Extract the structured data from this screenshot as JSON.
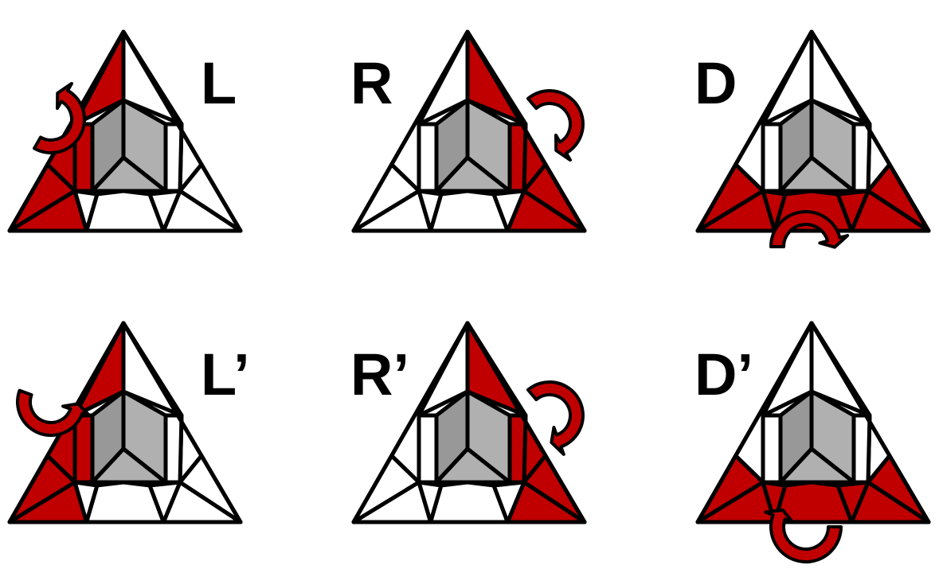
{
  "colors": {
    "red": "#c00000",
    "white": "#ffffff",
    "gray_light": "#b0b0b0",
    "gray_dark": "#989898",
    "outline": "#000000"
  },
  "moves": [
    {
      "label": "L",
      "face": "left",
      "direction": "clockwise"
    },
    {
      "label": "R",
      "face": "right",
      "direction": "clockwise"
    },
    {
      "label": "D",
      "face": "bottom",
      "direction": "clockwise"
    },
    {
      "label": "L’",
      "face": "left",
      "direction": "counterclockwise"
    },
    {
      "label": "R’",
      "face": "right",
      "direction": "counterclockwise"
    },
    {
      "label": "D’",
      "face": "bottom",
      "direction": "counterclockwise"
    }
  ]
}
